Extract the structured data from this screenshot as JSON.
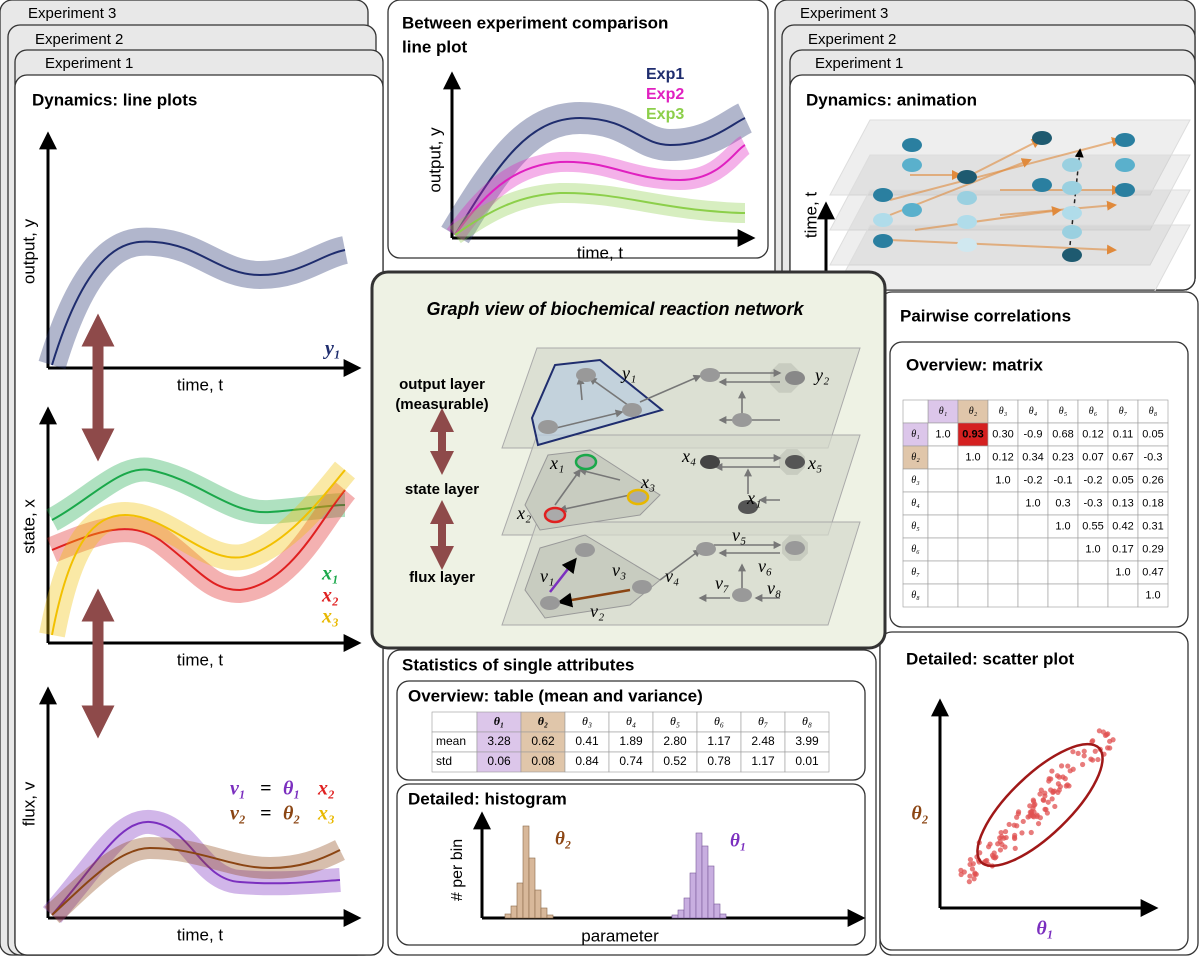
{
  "left_panel": {
    "tabs": [
      "Experiment 3",
      "Experiment 2",
      "Experiment 1"
    ],
    "title": "Dynamics: line plots",
    "plots": [
      {
        "ylabel": "output, y",
        "xlabel": "time, t",
        "legend": [
          [
            "y₁"
          ]
        ]
      },
      {
        "ylabel": "state, x",
        "xlabel": "time, t",
        "legend": [
          [
            "x₁"
          ],
          [
            "x₂"
          ],
          [
            "x₃"
          ]
        ]
      },
      {
        "ylabel": "flux, v",
        "xlabel": "time, t",
        "legend": [
          [
            "v₁",
            "=",
            "θ₁",
            "x₂"
          ],
          [
            "v₂",
            "=",
            "θ₂",
            "x₃"
          ]
        ]
      }
    ]
  },
  "comparison_panel": {
    "title": [
      "Between experiment comparison",
      "line plot"
    ],
    "legend": [
      "Exp1",
      "Exp2",
      "Exp3"
    ],
    "ylabel": "output, y",
    "xlabel": "time, t"
  },
  "animation_panel": {
    "tabs": [
      "Experiment 3",
      "Experiment 2",
      "Experiment 1"
    ],
    "title": "Dynamics: animation",
    "ylabel": "time, t"
  },
  "graph_view": {
    "title": "Graph view of biochemical reaction network",
    "layer_labels": [
      [
        "output layer",
        "(measurable)"
      ],
      [
        "state layer"
      ],
      [
        "flux layer"
      ]
    ],
    "node_labels": [
      "y₁",
      "y₂",
      "x₁",
      "x₃",
      "x₂",
      "x₄",
      "x₅",
      "x₁",
      "v₅",
      "v₆",
      "v₁",
      "v₃",
      "v₄",
      "v₇",
      "v₈",
      "v₂"
    ]
  },
  "correlations_panel": {
    "title": "Pairwise correlations",
    "matrix": {
      "title": "Overview: matrix",
      "columns": [
        "θ₁",
        "θ₂",
        "θ₃",
        "θ₄",
        "θ₅",
        "θ₆",
        "θ₇",
        "θ₈"
      ],
      "rows": [
        {
          "label": "θ₁",
          "cells": [
            "1.0",
            "0.93",
            "0.30",
            "-0.9",
            "0.68",
            "0.12",
            "0.11",
            "0.05"
          ]
        },
        {
          "label": "θ₂",
          "cells": [
            null,
            "1.0",
            "0.12",
            "0.34",
            "0.23",
            "0.07",
            "0.67",
            "-0.3"
          ]
        },
        {
          "label": "θ₃",
          "cells": [
            null,
            null,
            "1.0",
            "-0.2",
            "-0.1",
            "-0.2",
            "0.05",
            "0.26"
          ]
        },
        {
          "label": "θ₄",
          "cells": [
            null,
            null,
            null,
            "1.0",
            "0.3",
            "-0.3",
            "0.13",
            "0.18"
          ]
        },
        {
          "label": "θ₅",
          "cells": [
            null,
            null,
            null,
            null,
            "1.0",
            "0.55",
            "0.42",
            "0.31"
          ]
        },
        {
          "label": "θ₆",
          "cells": [
            null,
            null,
            null,
            null,
            null,
            "1.0",
            "0.17",
            "0.29"
          ]
        },
        {
          "label": "θ₇",
          "cells": [
            null,
            null,
            null,
            null,
            null,
            null,
            "1.0",
            "0.47"
          ]
        },
        {
          "label": "θ₈",
          "cells": [
            null,
            null,
            null,
            null,
            null,
            null,
            null,
            "1.0"
          ]
        }
      ]
    },
    "scatter": {
      "title": "Detailed: scatter plot",
      "ylabel": "θ₂",
      "xlabel": "θ₁"
    }
  },
  "statistics_panel": {
    "title": "Statistics of single attributes",
    "table": {
      "title": "Overview: table (mean and variance)",
      "columns": [
        "θ₁",
        "θ₂",
        "θ₃",
        "θ₄",
        "θ₅",
        "θ₆",
        "θ₇",
        "θ₈"
      ],
      "rows": [
        {
          "label": "mean",
          "cells": [
            "3.28",
            "0.62",
            "0.41",
            "1.89",
            "2.80",
            "1.17",
            "2.48",
            "3.99"
          ]
        },
        {
          "label": "std",
          "cells": [
            "0.06",
            "0.08",
            "0.84",
            "0.74",
            "0.52",
            "0.78",
            "1.17",
            "0.01"
          ]
        }
      ]
    },
    "histogram": {
      "title": "Detailed: histogram",
      "ylabel": "# per bin",
      "xlabel": "parameter",
      "labels": [
        "θ₂",
        "θ₁"
      ]
    }
  }
}
